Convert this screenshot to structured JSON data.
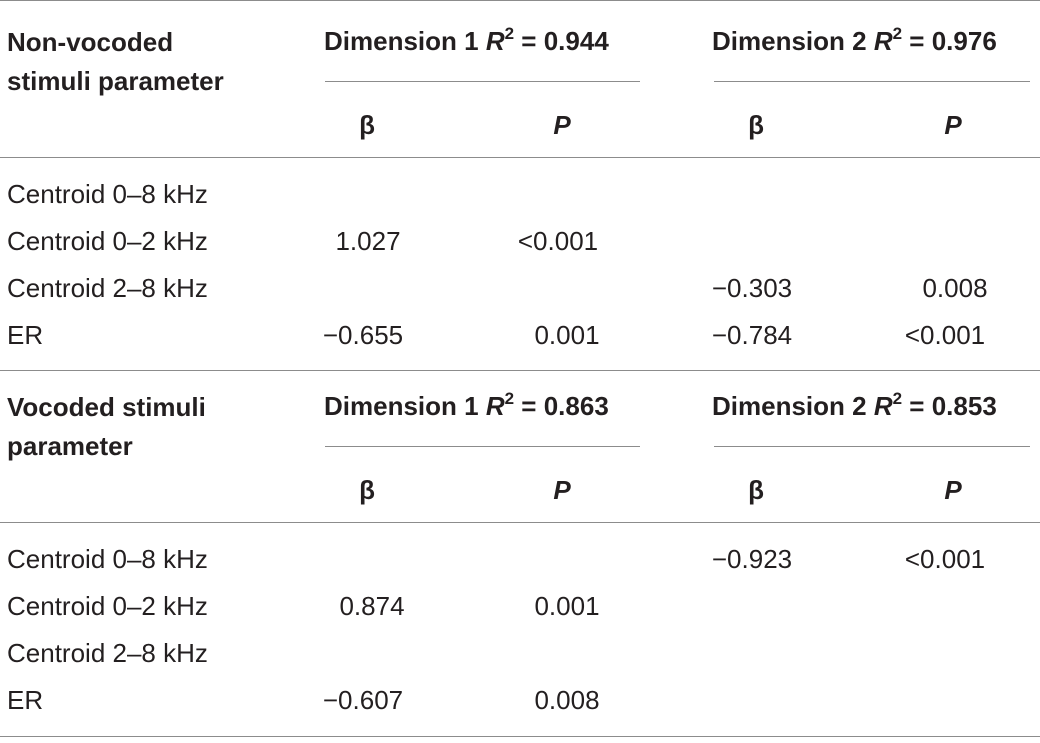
{
  "sections": [
    {
      "header": {
        "param_label_line1": "Non-vocoded",
        "param_label_line2": "stimuli parameter",
        "dim1": {
          "prefix": "Dimension 1 ",
          "r": "R",
          "sup": "2",
          "value": " = 0.944"
        },
        "dim2": {
          "prefix": "Dimension 2 ",
          "r": "R",
          "sup": "2",
          "value": " = 0.976"
        },
        "col_beta": "β",
        "col_p": "P"
      },
      "rows": [
        {
          "label": "Centroid 0–8 kHz",
          "d1_beta": "",
          "d1_p": "",
          "d2_beta": "",
          "d2_p": ""
        },
        {
          "label": "Centroid 0–2 kHz",
          "d1_beta": "1.027",
          "d1_p": "<0.001",
          "d2_beta": "",
          "d2_p": ""
        },
        {
          "label": "Centroid 2–8 kHz",
          "d1_beta": "",
          "d1_p": "",
          "d2_beta": "−0.303",
          "d2_p": "0.008"
        },
        {
          "label": "ER",
          "d1_beta": "−0.655",
          "d1_p": "0.001",
          "d2_beta": "−0.784",
          "d2_p": "<0.001"
        }
      ]
    },
    {
      "header": {
        "param_label_line1": "Vocoded stimuli",
        "param_label_line2": "parameter",
        "dim1": {
          "prefix": "Dimension 1 ",
          "r": "R",
          "sup": "2",
          "value": " = 0.863"
        },
        "dim2": {
          "prefix": "Dimension 2 ",
          "r": "R",
          "sup": "2",
          "value": " = 0.853"
        },
        "col_beta": "β",
        "col_p": "P"
      },
      "rows": [
        {
          "label": "Centroid 0–8 kHz",
          "d1_beta": "",
          "d1_p": "",
          "d2_beta": "−0.923",
          "d2_p": "<0.001"
        },
        {
          "label": "Centroid 0–2 kHz",
          "d1_beta": "0.874",
          "d1_p": "0.001",
          "d2_beta": "",
          "d2_p": ""
        },
        {
          "label": "Centroid 2–8 kHz",
          "d1_beta": "",
          "d1_p": "",
          "d2_beta": "",
          "d2_p": ""
        },
        {
          "label": "ER",
          "d1_beta": "−0.607",
          "d1_p": "0.008",
          "d2_beta": "",
          "d2_p": ""
        }
      ]
    }
  ]
}
